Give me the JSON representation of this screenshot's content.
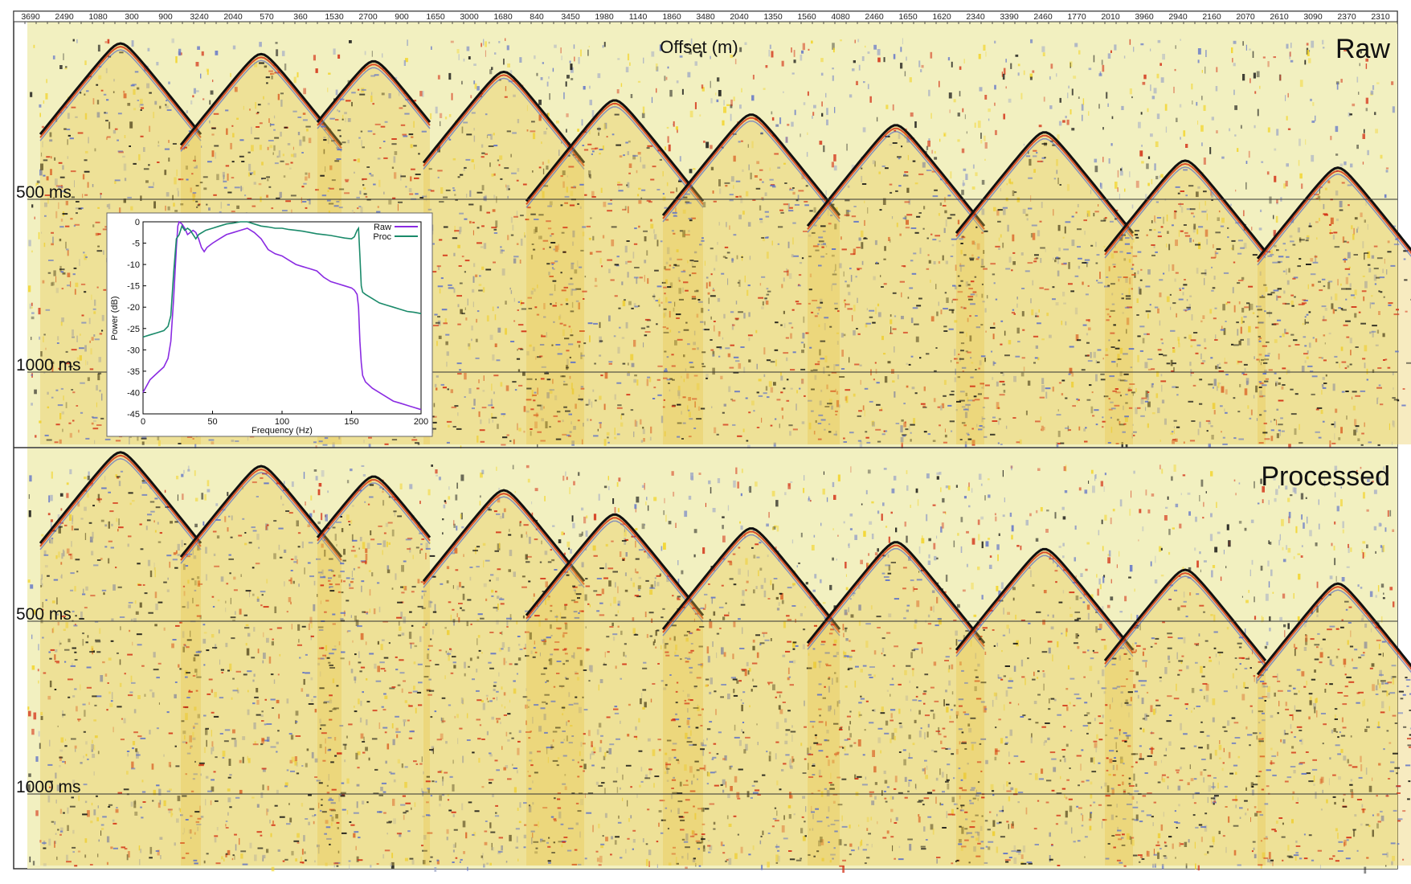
{
  "chart_data": [
    {
      "type": "heatmap",
      "kind": "seismic shot gathers (wiggle-density)",
      "xlabel": "Offset (m)",
      "x_tick_labels": [
        "3690",
        "2490",
        "1080",
        "300",
        "900",
        "3240",
        "2040",
        "570",
        "360",
        "1530",
        "2700",
        "900",
        "1650",
        "3000",
        "1680",
        "840",
        "3450",
        "1980",
        "1140",
        "1860",
        "3480",
        "2040",
        "1350",
        "1560",
        "4080",
        "2460",
        "1650",
        "1620",
        "2340",
        "3390",
        "2460",
        "1770",
        "2010",
        "3960",
        "2940",
        "2160",
        "2070",
        "2610",
        "3090",
        "2370",
        "2310"
      ],
      "colormap": [
        "#f2f0c0",
        "#f3d21e",
        "#d22a10",
        "#101010",
        "#5b6fc8",
        "#9aa3c7"
      ],
      "panels": [
        {
          "name": "Raw",
          "time_markers": [
            {
              "label": "500 ms",
              "value_ms": 500
            },
            {
              "label": "1000 ms",
              "value_ms": 1000
            }
          ],
          "shots": [
            {
              "apex_ms": 60,
              "half_width_traces": 1.0
            },
            {
              "apex_ms": 90,
              "half_width_traces": 1.0
            },
            {
              "apex_ms": 110,
              "half_width_traces": 0.7
            },
            {
              "apex_ms": 140,
              "half_width_traces": 1.0
            },
            {
              "apex_ms": 220,
              "half_width_traces": 1.1
            },
            {
              "apex_ms": 260,
              "half_width_traces": 1.1
            },
            {
              "apex_ms": 290,
              "half_width_traces": 1.1
            },
            {
              "apex_ms": 310,
              "half_width_traces": 1.1
            },
            {
              "apex_ms": 390,
              "half_width_traces": 1.0
            },
            {
              "apex_ms": 410,
              "half_width_traces": 1.0
            }
          ]
        },
        {
          "name": "Processed",
          "time_markers": [
            {
              "label": "500 ms",
              "value_ms": 500
            },
            {
              "label": "1000 ms",
              "value_ms": 1000
            }
          ],
          "shots": [
            {
              "apex_ms": 10,
              "half_width_traces": 1.0
            },
            {
              "apex_ms": 50,
              "half_width_traces": 1.0
            },
            {
              "apex_ms": 80,
              "half_width_traces": 0.7
            },
            {
              "apex_ms": 120,
              "half_width_traces": 1.0
            },
            {
              "apex_ms": 190,
              "half_width_traces": 1.1
            },
            {
              "apex_ms": 230,
              "half_width_traces": 1.1
            },
            {
              "apex_ms": 270,
              "half_width_traces": 1.1
            },
            {
              "apex_ms": 290,
              "half_width_traces": 1.1
            },
            {
              "apex_ms": 350,
              "half_width_traces": 1.0
            },
            {
              "apex_ms": 390,
              "half_width_traces": 1.0
            }
          ]
        }
      ]
    },
    {
      "type": "line",
      "xlabel": "Frequency (Hz)",
      "ylabel": "Power (dB)",
      "xlim": [
        0,
        200
      ],
      "ylim": [
        -45,
        0
      ],
      "x_ticks": [
        0,
        50,
        100,
        150,
        200
      ],
      "y_ticks": [
        0,
        -5,
        -10,
        -15,
        -20,
        -25,
        -30,
        -35,
        -40,
        -45
      ],
      "legend_position": "top-right",
      "series": [
        {
          "name": "Raw",
          "color": "#8a2be2",
          "points": [
            [
              0,
              -40
            ],
            [
              5,
              -37
            ],
            [
              10,
              -35.5
            ],
            [
              15,
              -34
            ],
            [
              18,
              -32
            ],
            [
              20,
              -28
            ],
            [
              22,
              -18
            ],
            [
              24,
              -6
            ],
            [
              25,
              -1
            ],
            [
              26,
              0
            ],
            [
              28,
              -0.5
            ],
            [
              30,
              -1.5
            ],
            [
              32,
              -3
            ],
            [
              34,
              -2.5
            ],
            [
              36,
              -2
            ],
            [
              38,
              -2.5
            ],
            [
              40,
              -4
            ],
            [
              42,
              -6
            ],
            [
              44,
              -7
            ],
            [
              46,
              -6
            ],
            [
              50,
              -5
            ],
            [
              55,
              -4
            ],
            [
              60,
              -3
            ],
            [
              65,
              -2.5
            ],
            [
              70,
              -2
            ],
            [
              75,
              -1.5
            ],
            [
              80,
              -2.5
            ],
            [
              85,
              -4
            ],
            [
              90,
              -6.5
            ],
            [
              95,
              -7.5
            ],
            [
              100,
              -8
            ],
            [
              105,
              -9
            ],
            [
              110,
              -10
            ],
            [
              115,
              -10.5
            ],
            [
              120,
              -11
            ],
            [
              125,
              -11.5
            ],
            [
              130,
              -13
            ],
            [
              135,
              -14
            ],
            [
              140,
              -14.5
            ],
            [
              145,
              -15
            ],
            [
              150,
              -15.5
            ],
            [
              152,
              -16
            ],
            [
              154,
              -17
            ],
            [
              155,
              -20
            ],
            [
              156,
              -28
            ],
            [
              157,
              -33
            ],
            [
              158,
              -36
            ],
            [
              160,
              -37.5
            ],
            [
              165,
              -39
            ],
            [
              170,
              -40
            ],
            [
              175,
              -41
            ],
            [
              180,
              -42
            ],
            [
              185,
              -42.5
            ],
            [
              190,
              -43
            ],
            [
              195,
              -43.5
            ],
            [
              200,
              -44
            ]
          ]
        },
        {
          "name": "Proc",
          "color": "#1a8a6a",
          "points": [
            [
              0,
              -27
            ],
            [
              5,
              -26.5
            ],
            [
              10,
              -26
            ],
            [
              15,
              -25.5
            ],
            [
              18,
              -24.5
            ],
            [
              20,
              -22
            ],
            [
              22,
              -12
            ],
            [
              24,
              -4
            ],
            [
              26,
              -3
            ],
            [
              28,
              -1
            ],
            [
              30,
              -2
            ],
            [
              32,
              -1.5
            ],
            [
              34,
              -2
            ],
            [
              36,
              -3
            ],
            [
              38,
              -4
            ],
            [
              40,
              -3
            ],
            [
              45,
              -2
            ],
            [
              50,
              -1.5
            ],
            [
              55,
              -1
            ],
            [
              60,
              -0.5
            ],
            [
              65,
              -0.3
            ],
            [
              70,
              0
            ],
            [
              75,
              0
            ],
            [
              80,
              -0.5
            ],
            [
              85,
              -1
            ],
            [
              90,
              -1.2
            ],
            [
              95,
              -1.5
            ],
            [
              100,
              -1.5
            ],
            [
              105,
              -1.8
            ],
            [
              110,
              -2
            ],
            [
              115,
              -2.2
            ],
            [
              120,
              -2.5
            ],
            [
              125,
              -2.8
            ],
            [
              130,
              -3
            ],
            [
              135,
              -3.2
            ],
            [
              140,
              -3.5
            ],
            [
              145,
              -3.8
            ],
            [
              150,
              -4
            ],
            [
              152,
              -3.5
            ],
            [
              154,
              -2
            ],
            [
              155,
              -1.5
            ],
            [
              156,
              -8
            ],
            [
              157,
              -15
            ],
            [
              158,
              -16.5
            ],
            [
              160,
              -17
            ],
            [
              165,
              -18
            ],
            [
              170,
              -19
            ],
            [
              175,
              -19.5
            ],
            [
              180,
              -20
            ],
            [
              185,
              -20.5
            ],
            [
              190,
              -21
            ],
            [
              195,
              -21.2
            ],
            [
              200,
              -21.5
            ]
          ]
        }
      ]
    }
  ]
}
